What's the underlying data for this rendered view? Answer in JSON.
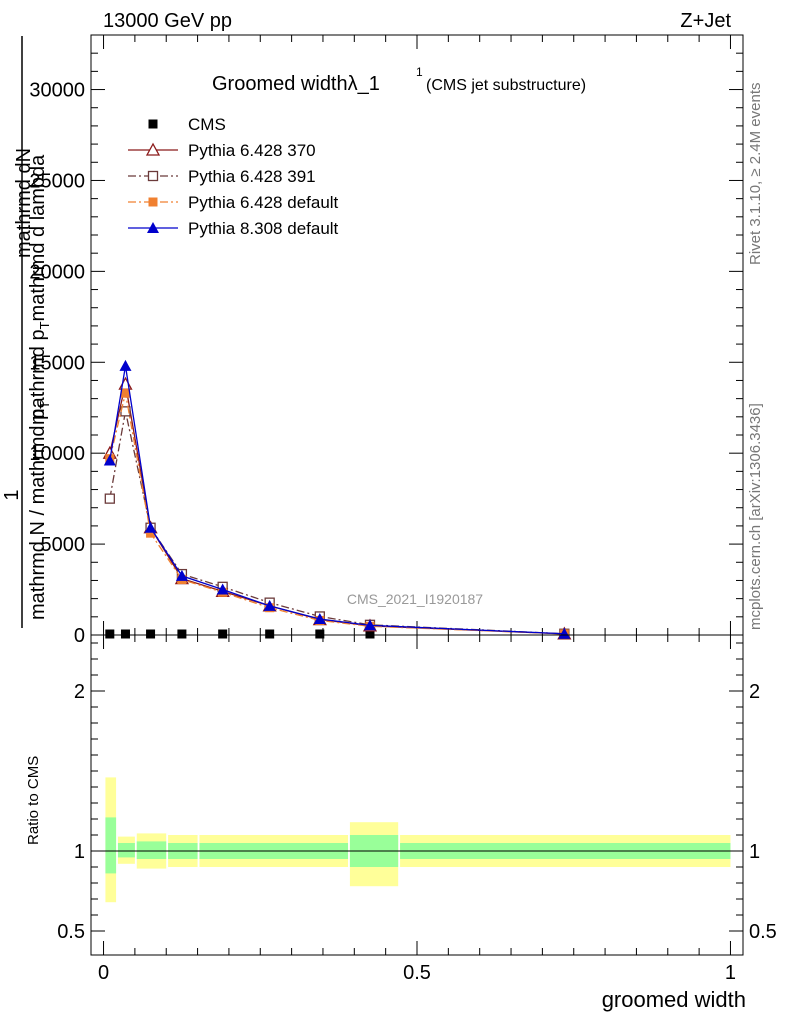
{
  "header": {
    "energy_label": "13000 GeV pp",
    "process_label": "Z+Jet"
  },
  "side_labels": {
    "rivet": "Rivet 3.1.10, ≥ 2.4M events",
    "mcplots": "mcplots.cern.ch [arXiv:1306.3436]"
  },
  "watermark": "CMS_2021_I1920187",
  "colors": {
    "cms": "#000000",
    "py6_370": "#8b1a1a",
    "py6_391": "#6b3a3a",
    "py6_default": "#f08030",
    "py8_default": "#0000cc",
    "band_inner": "#99ff99",
    "band_outer": "#ffff99"
  },
  "chart_data": [
    {
      "type": "line",
      "title": "Groomed widthλ_1",
      "title_superscript": "1",
      "subtitle": "(CMS jet substructure)",
      "ylabel_parts": [
        "1",
        "mathrmd N / mathrmd p",
        "T",
        "mathrmd dN",
        "mathrmd p",
        "T",
        "mathrmd d lambda"
      ],
      "ylim": [
        0,
        33000
      ],
      "yticks": [
        0,
        5000,
        10000,
        15000,
        20000,
        25000,
        30000
      ],
      "ytick_labels": [
        "0",
        "5000",
        "10000",
        "15000",
        "20000",
        "25000",
        "30000"
      ],
      "xlim": [
        -0.02,
        1.02
      ],
      "legend_position": "top-left",
      "series": [
        {
          "name": "CMS",
          "marker": "filled-square",
          "x": [
            0.01,
            0.035,
            0.075,
            0.125,
            0.19,
            0.265,
            0.345,
            0.425
          ],
          "values": [
            0,
            0,
            0,
            0,
            0,
            0,
            0,
            0
          ]
        },
        {
          "name": "Pythia 6.428 370",
          "marker": "open-triangle",
          "line": "solid",
          "x": [
            0.01,
            0.035,
            0.075,
            0.125,
            0.19,
            0.265,
            0.345,
            0.425,
            0.735
          ],
          "values": [
            10000,
            13800,
            5900,
            3100,
            2400,
            1600,
            850,
            500,
            60
          ]
        },
        {
          "name": "Pythia 6.428 391",
          "marker": "open-square",
          "line": "dash-dot",
          "x": [
            0.01,
            0.035,
            0.075,
            0.125,
            0.19,
            0.265,
            0.345,
            0.425,
            0.735
          ],
          "values": [
            7500,
            12300,
            5900,
            3350,
            2650,
            1780,
            1020,
            560,
            70
          ]
        },
        {
          "name": "Pythia 6.428 default",
          "marker": "filled-square",
          "line": "dash-dot",
          "x": [
            0.01,
            0.035,
            0.075,
            0.125,
            0.19,
            0.265,
            0.345,
            0.425,
            0.735
          ],
          "values": [
            9700,
            13300,
            5600,
            3050,
            2350,
            1500,
            800,
            480,
            60
          ]
        },
        {
          "name": "Pythia 8.308 default",
          "marker": "filled-triangle",
          "line": "solid",
          "x": [
            0.01,
            0.035,
            0.075,
            0.125,
            0.19,
            0.265,
            0.345,
            0.425,
            0.735
          ],
          "values": [
            9600,
            14800,
            5900,
            3250,
            2500,
            1600,
            880,
            530,
            70
          ]
        }
      ]
    },
    {
      "type": "area",
      "ylabel": "Ratio to CMS",
      "xlabel": "groomed width",
      "ylim": [
        0.35,
        2.35
      ],
      "yticks": [
        0.5,
        1,
        2
      ],
      "ytick_labels": [
        "0.5",
        "1",
        "2"
      ],
      "xlim": [
        -0.02,
        1.02
      ],
      "xticks": [
        0,
        0.5,
        1
      ],
      "xtick_labels": [
        "0",
        "0.5",
        "1"
      ],
      "reference_line": 1,
      "bins": [
        {
          "x0": 0.0,
          "x1": 0.02,
          "inner": [
            0.86,
            1.21
          ],
          "outer": [
            0.68,
            1.46
          ]
        },
        {
          "x0": 0.02,
          "x1": 0.05,
          "inner": [
            0.96,
            1.05
          ],
          "outer": [
            0.92,
            1.09
          ]
        },
        {
          "x0": 0.05,
          "x1": 0.1,
          "inner": [
            0.95,
            1.06
          ],
          "outer": [
            0.89,
            1.11
          ]
        },
        {
          "x0": 0.1,
          "x1": 0.15,
          "inner": [
            0.95,
            1.05
          ],
          "outer": [
            0.9,
            1.1
          ]
        },
        {
          "x0": 0.15,
          "x1": 0.39,
          "inner": [
            0.95,
            1.05
          ],
          "outer": [
            0.9,
            1.1
          ]
        },
        {
          "x0": 0.39,
          "x1": 0.47,
          "inner": [
            0.9,
            1.1
          ],
          "outer": [
            0.78,
            1.18
          ]
        },
        {
          "x0": 0.47,
          "x1": 1.0,
          "inner": [
            0.95,
            1.05
          ],
          "outer": [
            0.9,
            1.1
          ]
        }
      ]
    }
  ]
}
